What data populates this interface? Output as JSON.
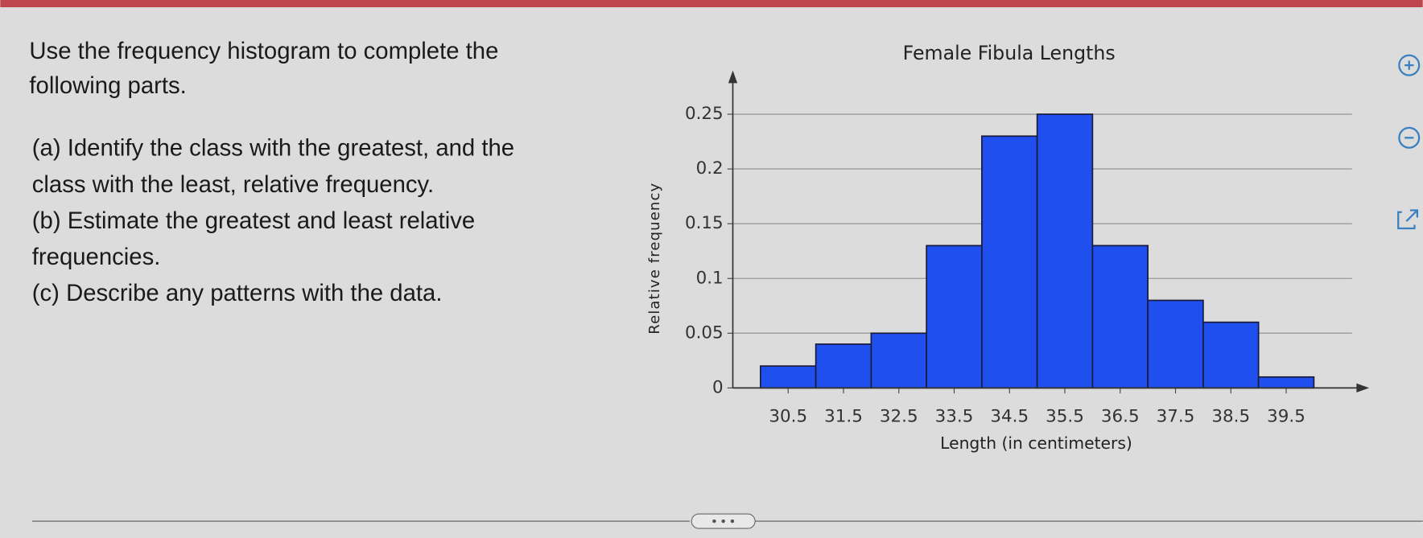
{
  "question": {
    "intro": [
      "Use the frequency histogram to complete the",
      "following parts."
    ],
    "parts": [
      "(a) Identify the class with the greatest, and the",
      "class with the least, relative frequency.",
      "(b) Estimate the greatest and least relative",
      "frequencies.",
      "(c) Describe any patterns with the data."
    ]
  },
  "chart_data": {
    "type": "histogram",
    "title": "Female Fibula Lengths",
    "x_label": "Length (in centimeters)",
    "y_label": "Relative frequency",
    "bins": [
      30,
      31,
      32,
      33,
      34,
      35,
      36,
      37,
      38,
      39,
      40
    ],
    "values": [
      0.02,
      0.04,
      0.05,
      0.13,
      0.23,
      0.25,
      0.13,
      0.08,
      0.06,
      0.01
    ],
    "color": "#1f4fee",
    "xlim": [
      29.5,
      41
    ],
    "xticks": [
      30.5,
      31.5,
      32.5,
      33.5,
      34.5,
      35.5,
      36.5,
      37.5,
      38.5,
      39.5
    ],
    "ylim": [
      0,
      0.29
    ],
    "yticks": [
      0,
      0.05,
      0.1,
      0.15,
      0.2,
      0.25
    ],
    "grid": true
  }
}
